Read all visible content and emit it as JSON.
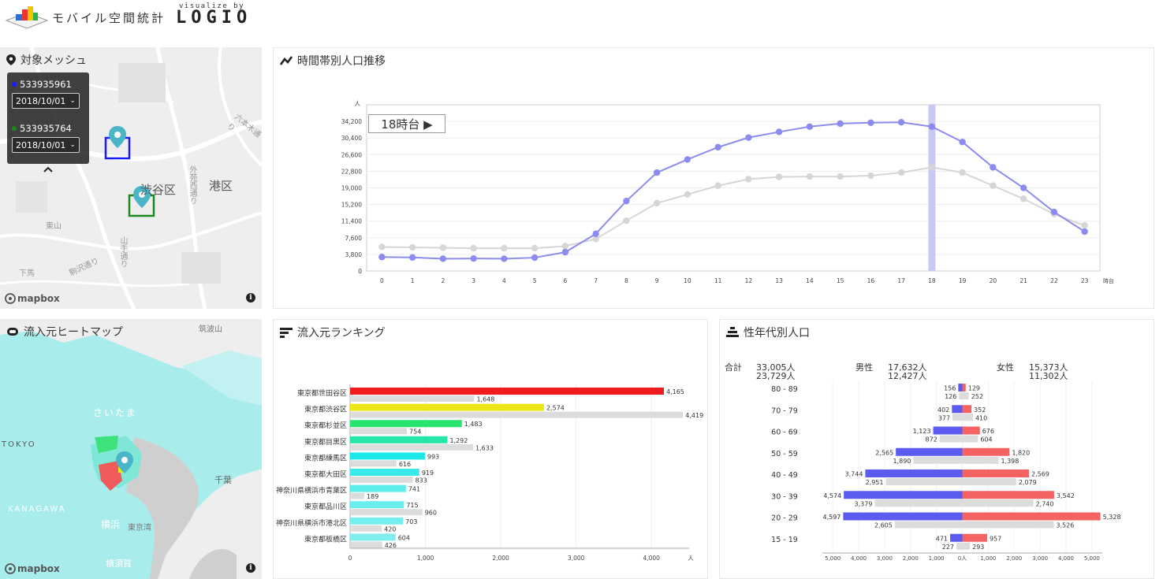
{
  "header": {
    "brand_jp": "モバイル空間統計",
    "brand_visualize": "visualize by",
    "brand_logio": "LOGIO"
  },
  "mesh_panel": {
    "title": "対象メッシュ",
    "meshes": [
      {
        "id": "533935961",
        "date": "2018/10/01",
        "color": "#1a1aff"
      },
      {
        "id": "533935764",
        "date": "2018/10/01",
        "color": "#1a8a1a"
      }
    ],
    "map_labels": [
      "渋谷区",
      "港区",
      "東山",
      "下馬",
      "駒沢通り",
      "外苑西通り",
      "山手通り",
      "六本木通り"
    ],
    "mapbox": "mapbox",
    "info": "i"
  },
  "heatmap_panel": {
    "title": "流入元ヒートマップ",
    "map_labels": [
      "さいたま",
      "TOKYO",
      "KANAGAWA",
      "横浜",
      "東京湾",
      "千葉",
      "筑波山",
      "横須賀"
    ],
    "mapbox": "mapbox",
    "info": "i"
  },
  "hourly_panel": {
    "title": "時間帯別人口推移",
    "play_label": "18時台 ▶",
    "chart_data": {
      "type": "line",
      "y_unit": "人",
      "x_unit": "時台",
      "ylim": [
        0,
        38000
      ],
      "yticks": [
        0,
        3800,
        7600,
        11400,
        15200,
        19000,
        22800,
        26600,
        30400,
        34200
      ],
      "ytick_labels": [
        "0",
        "3,800",
        "7,600",
        "11,400",
        "15,200",
        "19,000",
        "22,800",
        "26,600",
        "30,400",
        "34,200"
      ],
      "x": [
        0,
        1,
        2,
        3,
        4,
        5,
        6,
        7,
        8,
        9,
        10,
        11,
        12,
        13,
        14,
        15,
        16,
        17,
        18,
        19,
        20,
        21,
        22,
        23
      ],
      "highlight_x": 18,
      "grid": true,
      "series": [
        {
          "color": "#8c8cf0",
          "values": [
            3200,
            3100,
            2800,
            2850,
            2800,
            3050,
            4300,
            8500,
            16000,
            22500,
            25500,
            28300,
            30500,
            31800,
            33000,
            33700,
            33900,
            34000,
            33000,
            29500,
            23700,
            19000,
            13500,
            9000
          ]
        },
        {
          "color": "#d6d6d6",
          "values": [
            5500,
            5400,
            5300,
            5200,
            5200,
            5200,
            5700,
            7300,
            11500,
            15500,
            17500,
            19500,
            21000,
            21500,
            21600,
            21600,
            21800,
            22500,
            23700,
            22500,
            19500,
            16500,
            13000,
            10400
          ]
        }
      ]
    }
  },
  "ranking_panel": {
    "title": "流入元ランキング",
    "chart_data": {
      "type": "bar",
      "orientation": "horizontal",
      "categories": [
        "東京都世田谷区",
        "東京都渋谷区",
        "東京都杉並区",
        "東京都目黒区",
        "東京都練馬区",
        "東京都大田区",
        "神奈川県横浜市青葉区",
        "東京都品川区",
        "神奈川県横浜市港北区",
        "東京都板橋区"
      ],
      "series": [
        {
          "values": [
            4165,
            2574,
            1483,
            1292,
            993,
            919,
            741,
            715,
            703,
            604
          ],
          "colors": [
            "#ee1c1c",
            "#ebe614",
            "#28e46f",
            "#25e6a8",
            "#1be8e8",
            "#3aeaea",
            "#5cecec",
            "#6ceeee",
            "#74eeee",
            "#80eeee"
          ]
        },
        {
          "color": "#dcdcdc",
          "values": [
            1648,
            4419,
            754,
            1633,
            616,
            833,
            189,
            960,
            420,
            426
          ]
        }
      ],
      "value_labels": [
        [
          "4,165",
          "2,574",
          "1,483",
          "1,292",
          "993",
          "919",
          "741",
          "715",
          "703",
          "604"
        ],
        [
          "1,648",
          "4,419",
          "754",
          "1,633",
          "616",
          "833",
          "189",
          "960",
          "420",
          "426"
        ]
      ],
      "xlim": [
        0,
        4500
      ],
      "xticks": [
        0,
        1000,
        2000,
        3000,
        4000
      ],
      "xtick_labels": [
        "0",
        "1,000",
        "2,000",
        "3,000",
        "4,000"
      ],
      "x_unit": "人"
    }
  },
  "pyramid_panel": {
    "title": "性年代別人口",
    "total_label": "合計",
    "total_values": [
      "33,005人",
      "23,729人"
    ],
    "male_label": "男性",
    "male_values": [
      "17,632人",
      "12,427人"
    ],
    "female_label": "女性",
    "female_values": [
      "15,373人",
      "11,302人"
    ],
    "chart_data": {
      "type": "bar",
      "orientation": "horizontal-pyramid",
      "categories": [
        "80 - 89",
        "70 - 79",
        "60 - 69",
        "50 - 59",
        "40 - 49",
        "30 - 39",
        "20 - 29",
        "15 - 19"
      ],
      "male": {
        "color": "#5b5bf0",
        "values": [
          156,
          402,
          1123,
          2565,
          3744,
          4574,
          4597,
          471
        ],
        "labels": [
          "156",
          "402",
          "1,123",
          "2,565",
          "3,744",
          "4,574",
          "4,597",
          "471"
        ]
      },
      "male_compare": {
        "color": "#dcdcdc",
        "values": [
          126,
          377,
          872,
          1890,
          2951,
          3379,
          2605,
          227
        ],
        "labels": [
          "126",
          "377",
          "872",
          "1,890",
          "2,951",
          "3,379",
          "2,605",
          "227"
        ]
      },
      "female": {
        "color": "#f46262",
        "values": [
          129,
          352,
          676,
          1820,
          2569,
          3542,
          5328,
          957
        ],
        "labels": [
          "129",
          "352",
          "676",
          "1,820",
          "2,569",
          "3,542",
          "5,328",
          "957"
        ]
      },
      "female_compare": {
        "color": "#dcdcdc",
        "values": [
          252,
          410,
          604,
          1398,
          2079,
          2740,
          3526,
          293
        ],
        "labels": [
          "252",
          "410",
          "604",
          "1,398",
          "2,079",
          "2,740",
          "3,526",
          "293"
        ]
      },
      "xlim": [
        -5400,
        5400
      ],
      "xtick_labels": [
        "5,000",
        "4,000",
        "3,000",
        "2,000",
        "1,000",
        "0人",
        "1,000",
        "2,000",
        "3,000",
        "4,000",
        "5,000"
      ]
    }
  }
}
